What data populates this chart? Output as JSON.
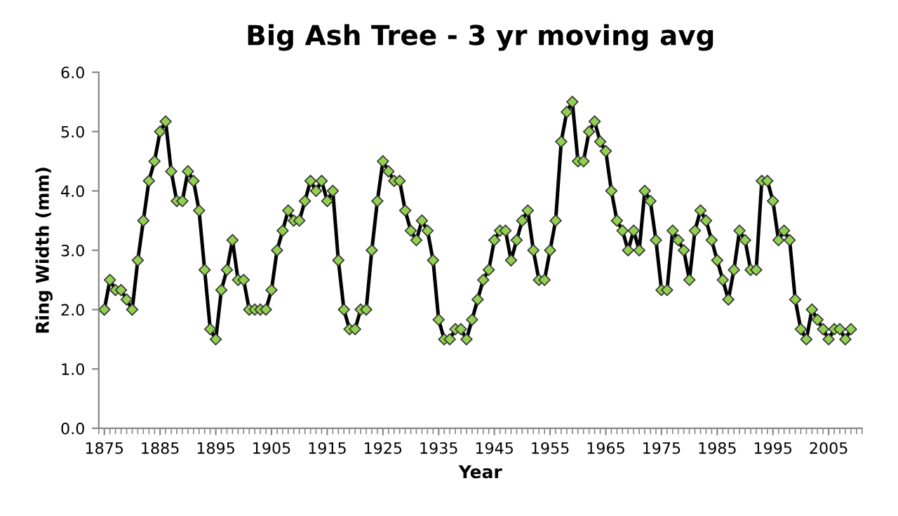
{
  "chart_data": {
    "type": "line",
    "title": "Big Ash Tree - 3 yr moving avg",
    "xlabel": "Year",
    "ylabel": "Ring Width (mm)",
    "x": [
      1875,
      1876,
      1877,
      1878,
      1879,
      1880,
      1881,
      1882,
      1883,
      1884,
      1885,
      1886,
      1887,
      1888,
      1889,
      1890,
      1891,
      1892,
      1893,
      1894,
      1895,
      1896,
      1897,
      1898,
      1899,
      1900,
      1901,
      1902,
      1903,
      1904,
      1905,
      1906,
      1907,
      1908,
      1909,
      1910,
      1911,
      1912,
      1913,
      1914,
      1915,
      1916,
      1917,
      1918,
      1919,
      1920,
      1921,
      1922,
      1923,
      1924,
      1925,
      1926,
      1927,
      1928,
      1929,
      1930,
      1931,
      1932,
      1933,
      1934,
      1935,
      1936,
      1937,
      1938,
      1939,
      1940,
      1941,
      1942,
      1943,
      1944,
      1945,
      1946,
      1947,
      1948,
      1949,
      1950,
      1951,
      1952,
      1953,
      1954,
      1955,
      1956,
      1957,
      1958,
      1959,
      1960,
      1961,
      1962,
      1963,
      1964,
      1965,
      1966,
      1967,
      1968,
      1969,
      1970,
      1971,
      1972,
      1973,
      1974,
      1975,
      1976,
      1977,
      1978,
      1979,
      1980,
      1981,
      1982,
      1983,
      1984,
      1985,
      1986,
      1987,
      1988,
      1989,
      1990,
      1991,
      1992,
      1993,
      1994,
      1995,
      1996,
      1997,
      1998,
      1999,
      2000,
      2001,
      2002,
      2003,
      2004,
      2005,
      2006,
      2007,
      2008,
      2009
    ],
    "series": [
      {
        "color": "#000000",
        "values": [
          2.0,
          2.5,
          2.33,
          2.33,
          2.17,
          2.0,
          2.83,
          3.5,
          4.17,
          4.5,
          5.0,
          5.17,
          4.33,
          3.83,
          3.83,
          4.33,
          4.17,
          3.67,
          2.67,
          1.67,
          1.5,
          2.33,
          2.67,
          3.17,
          2.5,
          2.5,
          2.0,
          2.0,
          2.0,
          2.0,
          2.33,
          3.0,
          3.33,
          3.67,
          3.5,
          3.5,
          3.83,
          4.17,
          4.0,
          4.17,
          3.83,
          4.0,
          2.83,
          2.0,
          1.67,
          1.67,
          2.0,
          2.0,
          3.0,
          3.83,
          4.5,
          4.33,
          4.17,
          4.17,
          3.67,
          3.33,
          3.17,
          3.5,
          3.33,
          2.83,
          1.83,
          1.5,
          1.5,
          1.67,
          1.67,
          1.5,
          1.83,
          2.17,
          2.5,
          2.67,
          3.17,
          3.33,
          3.33,
          2.83,
          3.17,
          3.5,
          3.67,
          3.0,
          2.5,
          2.5,
          3.0,
          3.5,
          4.83,
          5.33,
          5.5,
          4.5,
          4.5,
          5.0,
          5.17,
          4.83,
          4.67,
          4.0,
          3.5,
          3.33,
          3.0,
          3.33,
          3.0,
          4.0,
          3.83,
          3.17,
          2.33,
          2.33,
          3.33,
          3.17,
          3.0,
          2.5,
          3.33,
          3.67,
          3.5,
          3.17,
          2.83,
          2.5,
          2.17,
          2.67,
          3.33,
          3.17,
          2.67,
          2.67,
          4.17,
          4.17,
          3.83,
          3.17,
          3.33,
          3.17,
          2.17,
          1.67,
          1.5,
          2.0,
          1.83,
          1.67,
          1.5,
          1.67,
          1.67,
          1.5,
          1.67
        ]
      }
    ],
    "xlim": [
      1874,
      2011
    ],
    "xticks": [
      1875,
      1885,
      1895,
      1905,
      1915,
      1925,
      1935,
      1945,
      1955,
      1965,
      1975,
      1985,
      1995,
      2005
    ],
    "ylim": [
      0,
      6
    ],
    "yticks": [
      {
        "value": 0,
        "label": "0.0"
      },
      {
        "value": 1,
        "label": "1.0"
      },
      {
        "value": 2,
        "label": "2.0"
      },
      {
        "value": 3,
        "label": "3.0"
      },
      {
        "value": 4,
        "label": "4.0"
      },
      {
        "value": 5,
        "label": "5.0"
      },
      {
        "value": 6,
        "label": "6.0"
      }
    ],
    "marker": "diamond",
    "line_style": "solid",
    "grid": false,
    "legend": false
  }
}
